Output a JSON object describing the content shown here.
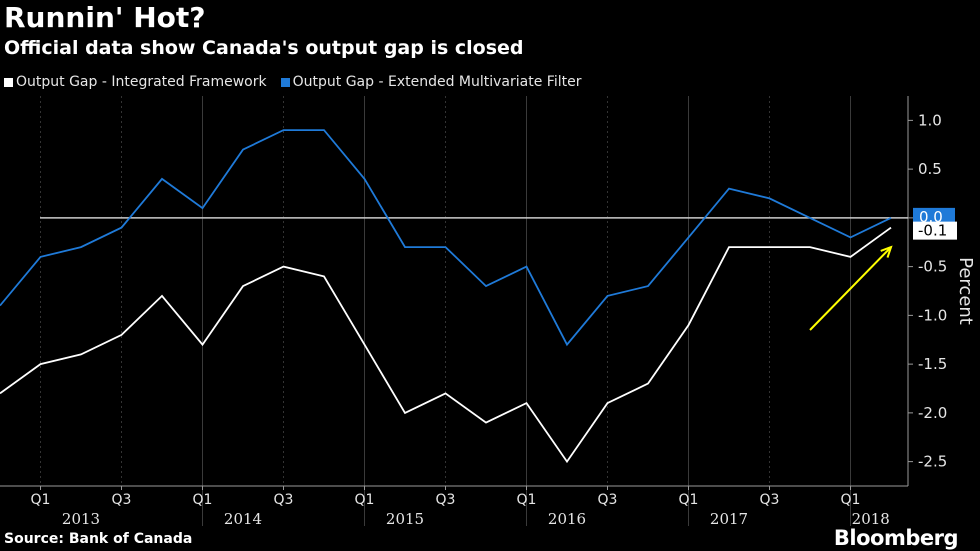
{
  "header": {
    "title": "Runnin' Hot?",
    "subtitle": "Official data show Canada's output gap is closed"
  },
  "footer": {
    "source": "Source: Bank of Canada",
    "brand": "Bloomberg"
  },
  "colors": {
    "background": "#000000",
    "series_white": "#ffffff",
    "series_blue": "#1f7ad8",
    "zero_line": "#cccccc",
    "annotation_arrow": "#ffff00",
    "grid": "#3a3a3a"
  },
  "chart_data": {
    "type": "line",
    "title": "Runnin' Hot?",
    "subtitle": "Official data show Canada's output gap is closed",
    "ylabel": "Percent",
    "ylim": [
      -2.75,
      1.25
    ],
    "yticks": [
      1.0,
      0.5,
      0.0,
      -0.5,
      -1.0,
      -1.5,
      -2.0,
      -2.5
    ],
    "ytick_labels": [
      "1.0",
      "0.5",
      "",
      "-0.5",
      "-1.0",
      "-1.5",
      "-2.0",
      "-2.5"
    ],
    "y_axis_position": "right",
    "grid": "vertical dashed, year separators solid",
    "legend_position": "top-left",
    "x": [
      "2012 Q4",
      "2013 Q1",
      "2013 Q2",
      "2013 Q3",
      "2013 Q4",
      "2014 Q1",
      "2014 Q2",
      "2014 Q3",
      "2014 Q4",
      "2015 Q1",
      "2015 Q2",
      "2015 Q3",
      "2015 Q4",
      "2016 Q1",
      "2016 Q2",
      "2016 Q3",
      "2016 Q4",
      "2017 Q1",
      "2017 Q2",
      "2017 Q3",
      "2017 Q4",
      "2018 Q1",
      "2018 Q2"
    ],
    "x_tick_labels": [
      {
        "label": "Q1",
        "index": 1
      },
      {
        "label": "Q3",
        "index": 3
      },
      {
        "label": "Q1",
        "index": 5
      },
      {
        "label": "Q3",
        "index": 7
      },
      {
        "label": "Q1",
        "index": 9
      },
      {
        "label": "Q3",
        "index": 11
      },
      {
        "label": "Q1",
        "index": 13
      },
      {
        "label": "Q3",
        "index": 15
      },
      {
        "label": "Q1",
        "index": 17
      },
      {
        "label": "Q3",
        "index": 19
      },
      {
        "label": "Q1",
        "index": 21
      }
    ],
    "x_year_labels": [
      {
        "label": "2013",
        "center_index": 2
      },
      {
        "label": "2014",
        "center_index": 6
      },
      {
        "label": "2015",
        "center_index": 10
      },
      {
        "label": "2016",
        "center_index": 14
      },
      {
        "label": "2017",
        "center_index": 18
      },
      {
        "label": "2018",
        "center_index": 21.5
      }
    ],
    "zero_line": 0.0,
    "series": [
      {
        "name": "Output Gap - Integrated Framework",
        "color": "#ffffff",
        "values": [
          -1.8,
          -1.5,
          -1.4,
          -1.2,
          -0.8,
          -1.3,
          -0.7,
          -0.5,
          -0.6,
          -1.3,
          -2.0,
          -1.8,
          -2.1,
          -1.9,
          -2.5,
          -1.9,
          -1.7,
          -1.1,
          -0.3,
          -0.3,
          -0.3,
          -0.4,
          -0.1
        ],
        "end_label": "-0.1"
      },
      {
        "name": "Output Gap - Extended Multivariate Filter",
        "color": "#1f7ad8",
        "values": [
          -0.9,
          -0.4,
          -0.3,
          -0.1,
          0.4,
          0.1,
          0.7,
          0.9,
          0.9,
          0.4,
          -0.3,
          -0.3,
          -0.7,
          -0.5,
          -1.3,
          -0.8,
          -0.7,
          -0.2,
          0.3,
          0.2,
          0.0,
          -0.2,
          0.0
        ],
        "end_label": "0.0"
      }
    ],
    "annotation": {
      "type": "arrow",
      "color": "#ffff00",
      "from": {
        "x_index": 20,
        "y": -1.15
      },
      "to": {
        "x_index": 22,
        "y": -0.3
      }
    }
  }
}
